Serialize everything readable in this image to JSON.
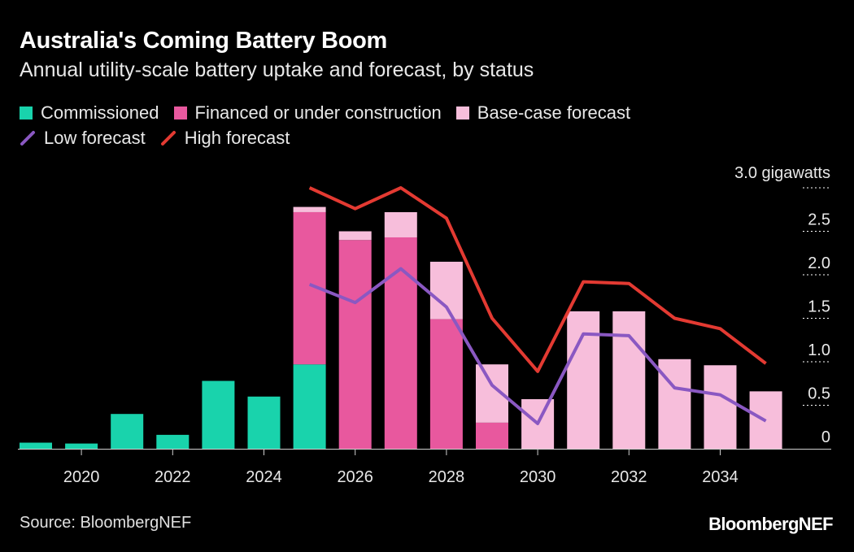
{
  "title": "Australia's Coming Battery Boom",
  "subtitle": "Annual utility-scale battery uptake and forecast, by status",
  "legend": [
    {
      "label": "Commissioned",
      "kind": "swatch",
      "color": "#19d3ac"
    },
    {
      "label": "Financed or under construction",
      "kind": "swatch",
      "color": "#e8589e"
    },
    {
      "label": "Base-case forecast",
      "kind": "swatch",
      "color": "#f7bedb"
    },
    {
      "label": "Low forecast",
      "kind": "line",
      "color": "#8a58c2"
    },
    {
      "label": "High forecast",
      "kind": "line",
      "color": "#e33a32"
    }
  ],
  "source": "Source: BloombergNEF",
  "brand": "BloombergNEF",
  "chart_data": {
    "type": "bar",
    "stacked": true,
    "categories": [
      "2019",
      "2020",
      "2021",
      "2022",
      "2023",
      "2024",
      "2025",
      "2026",
      "2027",
      "2028",
      "2029",
      "2030",
      "2031",
      "2032",
      "2033",
      "2034",
      "2035"
    ],
    "x_tick_labels": [
      "2020",
      "2022",
      "2024",
      "2026",
      "2028",
      "2030",
      "2032",
      "2034"
    ],
    "series": [
      {
        "name": "Commissioned",
        "color": "#19d3ac",
        "values": [
          0.07,
          0.06,
          0.4,
          0.16,
          0.78,
          0.6,
          0.97,
          0,
          0,
          0,
          0,
          0,
          0,
          0,
          0,
          0,
          0
        ]
      },
      {
        "name": "Financed or under construction",
        "color": "#e8589e",
        "values": [
          0,
          0,
          0,
          0,
          0,
          0,
          1.75,
          2.4,
          2.43,
          1.49,
          0.3,
          0,
          0,
          0,
          0,
          0,
          0
        ]
      },
      {
        "name": "Base-case forecast",
        "color": "#f7bedb",
        "values": [
          0,
          0,
          0,
          0,
          0,
          0,
          0.06,
          0.1,
          0.29,
          0.66,
          0.67,
          0.57,
          1.58,
          1.58,
          1.03,
          0.96,
          0.66
        ]
      }
    ],
    "lines": [
      {
        "name": "Low forecast",
        "color": "#8a58c2",
        "x": [
          "2025",
          "2026",
          "2027",
          "2028",
          "2029",
          "2030",
          "2031",
          "2032",
          "2033",
          "2034",
          "2035"
        ],
        "values": [
          1.89,
          1.68,
          2.07,
          1.63,
          0.73,
          0.29,
          1.32,
          1.3,
          0.7,
          0.62,
          0.32
        ]
      },
      {
        "name": "High forecast",
        "color": "#e33a32",
        "x": [
          "2025",
          "2026",
          "2027",
          "2028",
          "2029",
          "2030",
          "2031",
          "2032",
          "2033",
          "2034",
          "2035"
        ],
        "values": [
          3.0,
          2.76,
          3.0,
          2.65,
          1.5,
          0.89,
          1.92,
          1.9,
          1.5,
          1.38,
          0.98
        ]
      }
    ],
    "y_ticks": [
      "0",
      "0.5",
      "1.0",
      "1.5",
      "2.0",
      "2.5",
      "3.0 gigawatts"
    ],
    "ylim": [
      0,
      3.0
    ],
    "grid": false,
    "y_axis_position": "right",
    "legend_position": "top-left"
  }
}
